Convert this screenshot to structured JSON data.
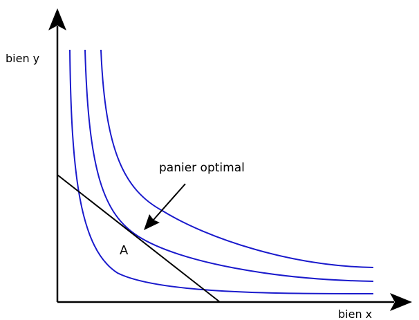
{
  "axes": {
    "y_label": "bien y",
    "x_label": "bien x"
  },
  "annotations": {
    "arrow_label": "panier optimal",
    "point_label": "A"
  }
}
